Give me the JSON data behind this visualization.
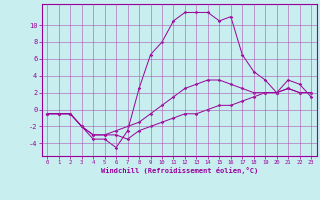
{
  "title": "",
  "xlabel": "Windchill (Refroidissement éolien,°C)",
  "ylabel": "",
  "background_color": "#c8eef0",
  "line_color": "#990099",
  "grid_color": "#aa44aa",
  "xlim": [
    -0.5,
    23.5
  ],
  "ylim": [
    -5.5,
    12.5
  ],
  "yticks": [
    -4,
    -2,
    0,
    2,
    4,
    6,
    8,
    10
  ],
  "xticks": [
    0,
    1,
    2,
    3,
    4,
    5,
    6,
    7,
    8,
    9,
    10,
    11,
    12,
    13,
    14,
    15,
    16,
    17,
    18,
    19,
    20,
    21,
    22,
    23
  ],
  "series": [
    [
      0,
      -0.5,
      1,
      -0.5,
      2,
      -0.5,
      3,
      -2,
      4,
      -3,
      5,
      -3,
      6,
      -2.5,
      7,
      -2,
      8,
      -1.5,
      9,
      -0.5,
      10,
      0.5,
      11,
      1.5,
      12,
      2.5,
      13,
      3,
      14,
      3.5,
      15,
      3.5,
      16,
      3,
      17,
      2.5,
      18,
      2,
      19,
      2,
      20,
      2,
      21,
      2.5,
      22,
      2,
      23,
      2
    ],
    [
      0,
      -0.5,
      1,
      -0.5,
      2,
      -0.5,
      3,
      -2,
      4,
      -3.5,
      5,
      -3.5,
      6,
      -4.5,
      7,
      -2.5,
      8,
      2.5,
      9,
      6.5,
      10,
      8,
      11,
      10.5,
      12,
      11.5,
      13,
      11.5,
      14,
      11.5,
      15,
      10.5,
      16,
      11,
      17,
      6.5,
      18,
      4.5,
      19,
      3.5,
      20,
      2,
      21,
      3.5,
      22,
      3,
      23,
      1.5
    ],
    [
      0,
      -0.5,
      1,
      -0.5,
      2,
      -0.5,
      3,
      -2,
      4,
      -3,
      5,
      -3,
      6,
      -3,
      7,
      -3.5,
      8,
      -2.5,
      9,
      -2,
      10,
      -1.5,
      11,
      -1,
      12,
      -0.5,
      13,
      -0.5,
      14,
      0,
      15,
      0.5,
      16,
      0.5,
      17,
      1,
      18,
      1.5,
      19,
      2,
      20,
      2,
      21,
      2.5,
      22,
      2,
      23,
      2
    ]
  ]
}
